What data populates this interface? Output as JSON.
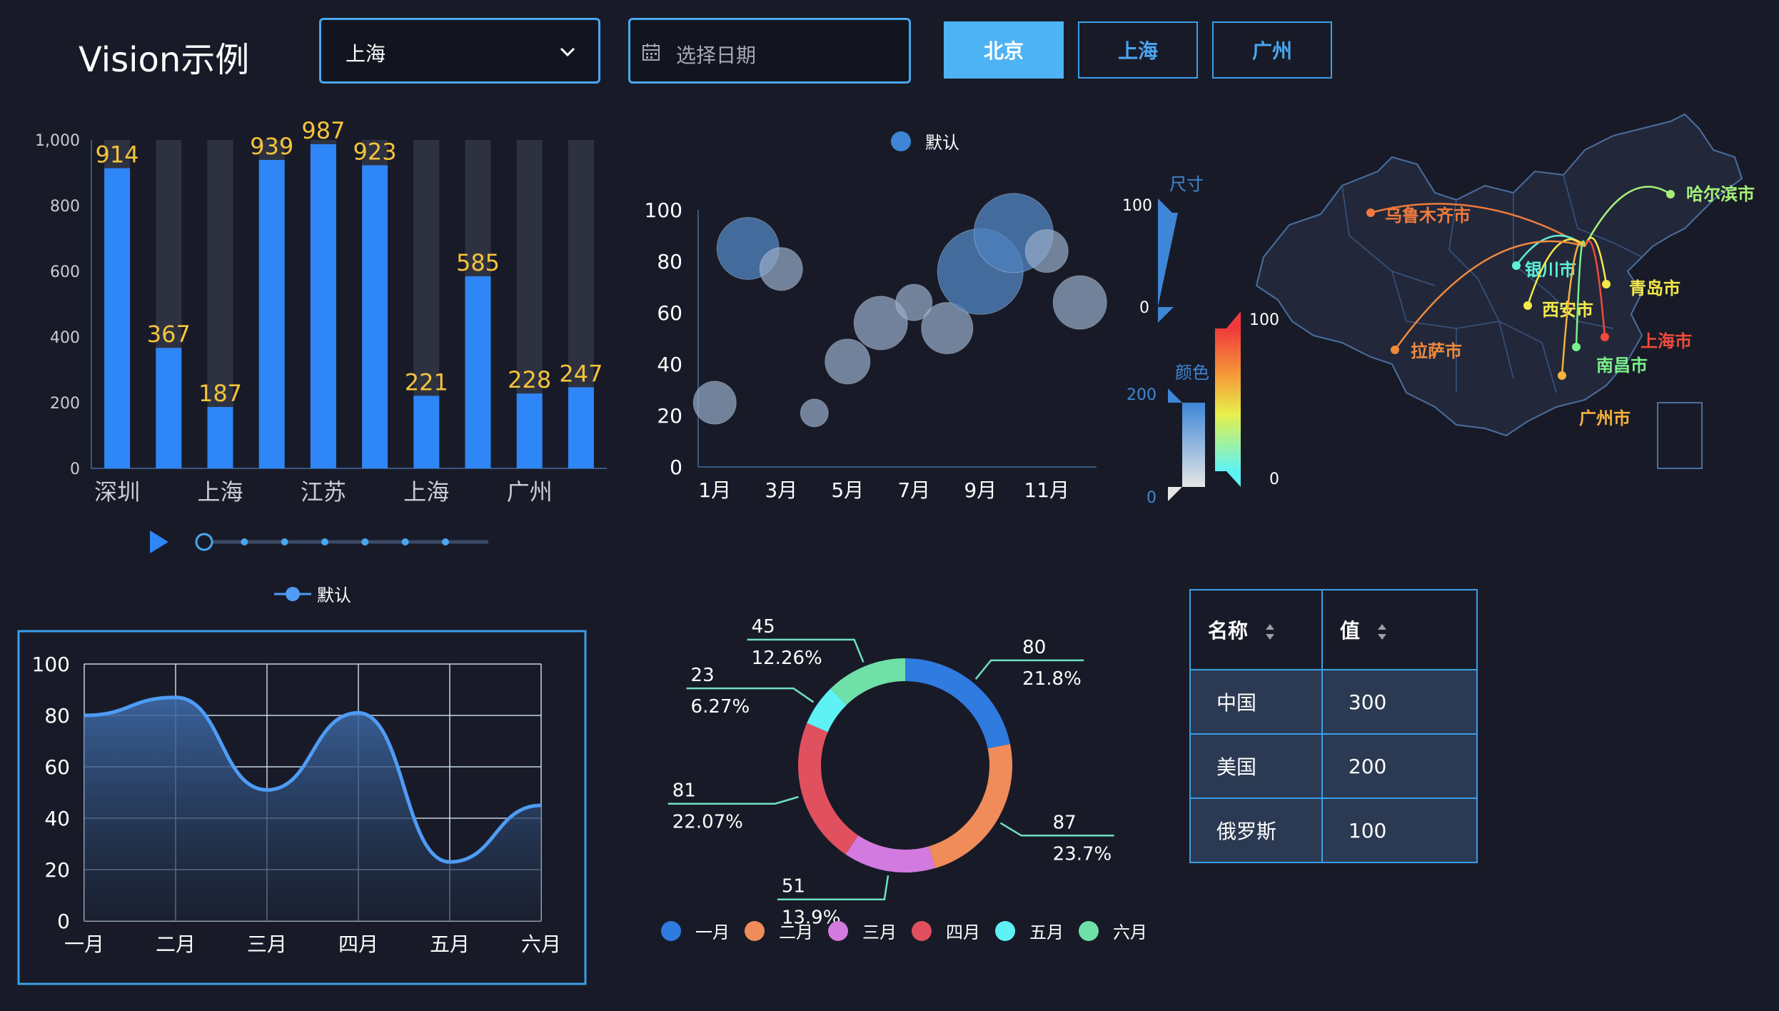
{
  "header": {
    "title": "Vision示例",
    "city_select": "上海",
    "date_placeholder": "选择日期",
    "tabs": [
      "北京",
      "上海",
      "广州"
    ],
    "active_tab": 0
  },
  "chart_data": [
    {
      "type": "bar",
      "categories": [
        "深圳",
        "",
        "上海",
        "",
        "江苏",
        "",
        "上海",
        "",
        "广州",
        ""
      ],
      "values": [
        914,
        367,
        187,
        939,
        987,
        923,
        221,
        585,
        228,
        247
      ],
      "ylim": [
        0,
        1000
      ],
      "yticks": [
        "1,000",
        "800",
        "600",
        "400",
        "200",
        "0"
      ],
      "timeline_points": 7,
      "colors": {
        "bar": "#2f86f6",
        "shadow": "#2e3240",
        "label": "#f5c33b"
      }
    },
    {
      "type": "scatter",
      "legend": "默认",
      "x_labels": [
        "1月",
        "3月",
        "5月",
        "7月",
        "9月",
        "11月"
      ],
      "yticks": [
        "100",
        "80",
        "60",
        "40",
        "20",
        "0"
      ],
      "ylim": [
        0,
        100
      ],
      "points": [
        {
          "x": 1,
          "y": 25,
          "size": 40
        },
        {
          "x": 2,
          "y": 85,
          "size": 58
        },
        {
          "x": 3,
          "y": 77,
          "size": 40
        },
        {
          "x": 4,
          "y": 21,
          "size": 26
        },
        {
          "x": 5,
          "y": 41,
          "size": 42
        },
        {
          "x": 6,
          "y": 56,
          "size": 50
        },
        {
          "x": 7,
          "y": 64,
          "size": 34
        },
        {
          "x": 8,
          "y": 54,
          "size": 48
        },
        {
          "x": 9,
          "y": 76,
          "size": 80
        },
        {
          "x": 10,
          "y": 91,
          "size": 74
        },
        {
          "x": 11,
          "y": 84,
          "size": 40
        },
        {
          "x": 12,
          "y": 64,
          "size": 50
        }
      ],
      "visual_map_size": {
        "label": "尺寸",
        "max": "100",
        "min": "0"
      },
      "visual_map_color": {
        "label": "颜色",
        "max": "200",
        "min": "0"
      },
      "visual_map_spectrum": {
        "max": "100",
        "min": "0"
      }
    },
    {
      "type": "map",
      "origin": "北京",
      "cities": [
        {
          "name": "乌鲁木齐市",
          "color": "#f07a3c"
        },
        {
          "name": "哈尔滨市",
          "color": "#a6f07a"
        },
        {
          "name": "银川市",
          "color": "#5ef0d8"
        },
        {
          "name": "青岛市",
          "color": "#f5e94a"
        },
        {
          "name": "西安市",
          "color": "#f5e94a"
        },
        {
          "name": "拉萨市",
          "color": "#f08a3c"
        },
        {
          "name": "上海市",
          "color": "#f04a3c"
        },
        {
          "name": "南昌市",
          "color": "#7af08a"
        },
        {
          "name": "广州市",
          "color": "#f5b23c"
        }
      ]
    },
    {
      "type": "area",
      "legend": "默认",
      "categories": [
        "一月",
        "二月",
        "三月",
        "四月",
        "五月",
        "六月"
      ],
      "values": [
        80,
        87,
        51,
        81,
        23,
        45
      ],
      "ylim": [
        0,
        100
      ],
      "yticks": [
        "100",
        "80",
        "60",
        "40",
        "20",
        "0"
      ]
    },
    {
      "type": "pie",
      "slices": [
        {
          "name": "一月",
          "value": "80",
          "percent": "21.8%",
          "color": "#2f7be0"
        },
        {
          "name": "二月",
          "value": "87",
          "percent": "23.7%",
          "color": "#f08c5a"
        },
        {
          "name": "三月",
          "value": "51",
          "percent": "13.9%",
          "color": "#d37ae0"
        },
        {
          "name": "四月",
          "value": "81",
          "percent": "22.07%",
          "color": "#e0505f"
        },
        {
          "name": "五月",
          "value": "23",
          "percent": "6.27%",
          "color": "#5ef2f5"
        },
        {
          "name": "六月",
          "value": "45",
          "percent": "12.26%",
          "color": "#6fe0a8"
        }
      ]
    },
    {
      "type": "table",
      "columns": [
        "名称",
        "值"
      ],
      "rows": [
        [
          "中国",
          "300"
        ],
        [
          "美国",
          "200"
        ],
        [
          "俄罗斯",
          "100"
        ]
      ]
    }
  ]
}
